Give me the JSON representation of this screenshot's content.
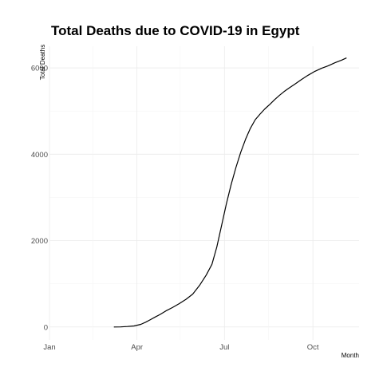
{
  "chart_data": {
    "type": "line",
    "title": "Total Deaths due to COVID-19 in Egypt",
    "xlabel": "Month",
    "ylabel": "Total Deaths",
    "x_ticks": [
      "Jan",
      "Apr",
      "Jul",
      "Oct"
    ],
    "y_ticks": [
      0,
      2000,
      4000,
      6000
    ],
    "xlim": [
      "2020-01-01",
      "2020-11-18"
    ],
    "ylim": [
      -300,
      6500
    ],
    "grid": true,
    "legend": "none",
    "line_color": "#000000",
    "series": [
      {
        "points": [
          [
            "2020-03-08",
            0
          ],
          [
            "2020-03-15",
            2
          ],
          [
            "2020-03-22",
            10
          ],
          [
            "2020-03-29",
            24
          ],
          [
            "2020-04-05",
            60
          ],
          [
            "2020-04-10",
            110
          ],
          [
            "2020-04-15",
            170
          ],
          [
            "2020-04-20",
            230
          ],
          [
            "2020-04-25",
            290
          ],
          [
            "2020-05-01",
            370
          ],
          [
            "2020-05-08",
            450
          ],
          [
            "2020-05-15",
            540
          ],
          [
            "2020-05-22",
            640
          ],
          [
            "2020-05-29",
            760
          ],
          [
            "2020-06-05",
            960
          ],
          [
            "2020-06-12",
            1200
          ],
          [
            "2020-06-18",
            1450
          ],
          [
            "2020-06-23",
            1850
          ],
          [
            "2020-06-28",
            2350
          ],
          [
            "2020-07-03",
            2850
          ],
          [
            "2020-07-08",
            3300
          ],
          [
            "2020-07-13",
            3700
          ],
          [
            "2020-07-18",
            4050
          ],
          [
            "2020-07-23",
            4350
          ],
          [
            "2020-07-28",
            4600
          ],
          [
            "2020-08-02",
            4800
          ],
          [
            "2020-08-07",
            4930
          ],
          [
            "2020-08-12",
            5050
          ],
          [
            "2020-08-17",
            5150
          ],
          [
            "2020-08-22",
            5260
          ],
          [
            "2020-08-27",
            5360
          ],
          [
            "2020-09-01",
            5450
          ],
          [
            "2020-09-06",
            5530
          ],
          [
            "2020-09-12",
            5620
          ],
          [
            "2020-09-19",
            5730
          ],
          [
            "2020-09-26",
            5830
          ],
          [
            "2020-10-03",
            5920
          ],
          [
            "2020-10-10",
            5990
          ],
          [
            "2020-10-17",
            6050
          ],
          [
            "2020-10-24",
            6120
          ],
          [
            "2020-10-31",
            6180
          ],
          [
            "2020-11-05",
            6230
          ]
        ]
      }
    ]
  }
}
